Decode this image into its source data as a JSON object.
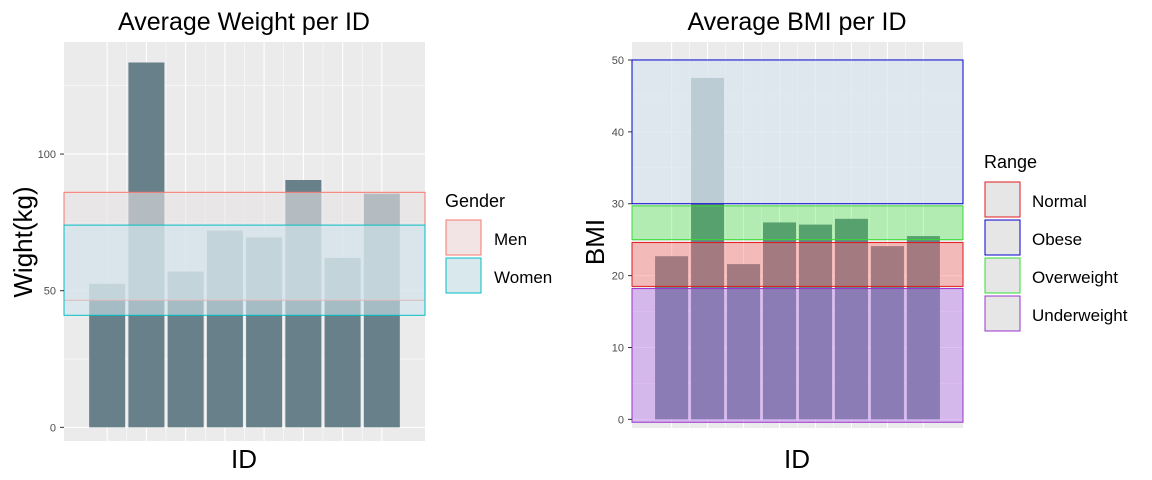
{
  "chart_data": [
    {
      "type": "bar",
      "title": "Average Weight per ID",
      "xlabel": "ID",
      "ylabel": "Wight(kg)",
      "ylim": [
        -5,
        141
      ],
      "yticks": [
        0,
        50,
        100
      ],
      "values": [
        52.5,
        133.5,
        57,
        72,
        69.5,
        90.5,
        62,
        85.5
      ],
      "bar_color": "#67808a",
      "legend": {
        "title": "Gender",
        "placement": "right",
        "items": [
          {
            "label": "Men",
            "border": "#f8766d",
            "fill": "#f2e4e4"
          },
          {
            "label": "Women",
            "border": "#00bfc4",
            "fill": "#d8e8ec"
          }
        ]
      },
      "bands": [
        {
          "name": "Men",
          "ymin": 46.5,
          "ymax": 86,
          "border": "#f8766d",
          "fill": "#e8e2e6",
          "opacity": 0.6
        },
        {
          "name": "Women",
          "ymin": 41,
          "ymax": 74,
          "border": "#00bfc4",
          "fill": "#cfe4ec",
          "opacity": 0.6
        }
      ],
      "grid": true
    },
    {
      "type": "bar",
      "title": "Average BMI per ID",
      "xlabel": "ID",
      "ylabel": "BMI",
      "ylim": [
        -1.2,
        52.5
      ],
      "yticks": [
        0,
        10,
        20,
        30,
        40,
        50
      ],
      "values": [
        22.7,
        47.5,
        21.6,
        27.4,
        27.1,
        27.9,
        24.1,
        25.5
      ],
      "bar_color": "#67808a",
      "legend": {
        "title": "Range",
        "placement": "right",
        "items": [
          {
            "label": "Normal",
            "border": "#e31a1c",
            "fill": "#e6e6e6"
          },
          {
            "label": "Obese",
            "border": "#0000cc",
            "fill": "#e6e6e6"
          },
          {
            "label": "Overweight",
            "border": "#33dd33",
            "fill": "#e6e6e6"
          },
          {
            "label": "Underweight",
            "border": "#9933cc",
            "fill": "#e6e6e6"
          }
        ]
      },
      "bands": [
        {
          "name": "Obese",
          "ymin": 30,
          "ymax": 50,
          "border": "#0000cc",
          "fill": "#d8e6ee",
          "opacity": 0.75
        },
        {
          "name": "Overweight",
          "ymin": 25,
          "ymax": 29.7,
          "border": "#33dd33",
          "fill": "#33ee33",
          "opacity": 0.3
        },
        {
          "name": "Normal",
          "ymin": 18.5,
          "ymax": 24.6,
          "border": "#e31a1c",
          "fill": "#ff7070",
          "opacity": 0.4
        },
        {
          "name": "Underweight",
          "ymin": -0.4,
          "ymax": 18.2,
          "border": "#9933cc",
          "fill": "#b877ec",
          "opacity": 0.45
        }
      ],
      "grid": true
    }
  ]
}
